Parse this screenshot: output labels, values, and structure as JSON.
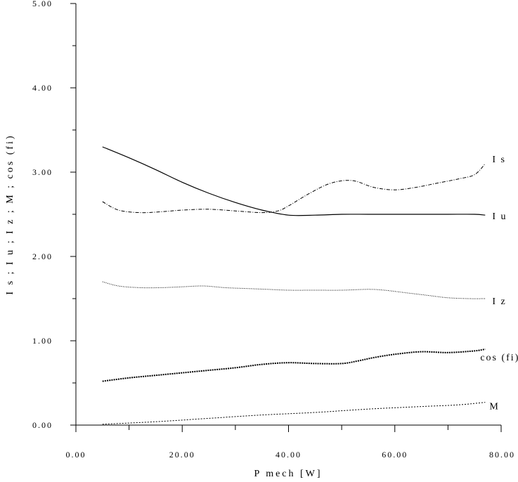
{
  "chart_data": {
    "type": "line",
    "title": "",
    "xlabel": "P mech  [W]",
    "ylabel": "I s ; I u ; I z ; M ; cos (fi)",
    "xlim": [
      0,
      80
    ],
    "ylim": [
      0,
      5
    ],
    "xticks": [
      "0.00",
      "20.00",
      "40.00",
      "60.00",
      "80.00"
    ],
    "yticks": [
      "0.00",
      "1.00",
      "2.00",
      "3.00",
      "4.00",
      "5.00"
    ],
    "grid": false,
    "series": [
      {
        "name": "I s",
        "style": "dashdot",
        "x": [
          5,
          8,
          12,
          16,
          20,
          25,
          30,
          35,
          38,
          40,
          44,
          48,
          52,
          56,
          60,
          64,
          68,
          72,
          75,
          77
        ],
        "y": [
          2.65,
          2.55,
          2.52,
          2.53,
          2.55,
          2.56,
          2.54,
          2.52,
          2.54,
          2.6,
          2.75,
          2.87,
          2.9,
          2.82,
          2.79,
          2.82,
          2.87,
          2.92,
          2.97,
          3.1
        ]
      },
      {
        "name": "I u",
        "style": "solid",
        "x": [
          5,
          10,
          15,
          20,
          25,
          30,
          35,
          40,
          45,
          50,
          55,
          60,
          65,
          70,
          75,
          77
        ],
        "y": [
          3.3,
          3.17,
          3.03,
          2.88,
          2.75,
          2.64,
          2.55,
          2.49,
          2.49,
          2.5,
          2.5,
          2.5,
          2.5,
          2.5,
          2.5,
          2.49
        ]
      },
      {
        "name": "I z",
        "style": "dotted",
        "x": [
          5,
          8,
          12,
          16,
          20,
          24,
          28,
          32,
          36,
          40,
          45,
          50,
          55,
          58,
          62,
          66,
          70,
          74,
          77
        ],
        "y": [
          1.7,
          1.65,
          1.63,
          1.63,
          1.64,
          1.65,
          1.63,
          1.62,
          1.61,
          1.6,
          1.6,
          1.6,
          1.61,
          1.6,
          1.57,
          1.54,
          1.51,
          1.5,
          1.5
        ]
      },
      {
        "name": "cos (fi)",
        "style": "dotted-bold",
        "x": [
          5,
          10,
          15,
          20,
          25,
          30,
          35,
          40,
          45,
          50,
          53,
          56,
          60,
          65,
          70,
          75,
          77
        ],
        "y": [
          0.52,
          0.56,
          0.59,
          0.62,
          0.65,
          0.68,
          0.72,
          0.74,
          0.73,
          0.73,
          0.76,
          0.8,
          0.84,
          0.87,
          0.86,
          0.88,
          0.9
        ]
      },
      {
        "name": "M",
        "style": "dashed-fine",
        "x": [
          5,
          15,
          25,
          35,
          45,
          55,
          65,
          72,
          77
        ],
        "y": [
          0.01,
          0.04,
          0.08,
          0.12,
          0.15,
          0.19,
          0.22,
          0.24,
          0.27
        ]
      }
    ]
  }
}
